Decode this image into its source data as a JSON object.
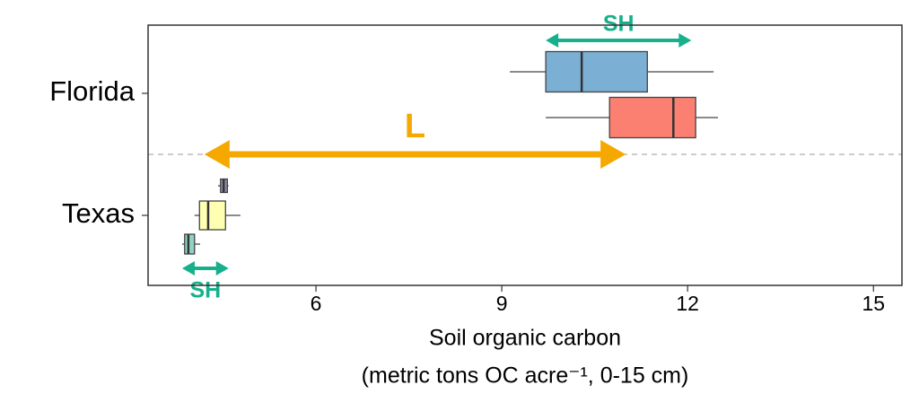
{
  "chart_data": {
    "type": "boxplot",
    "orientation": "horizontal",
    "categories": [
      "Florida",
      "Texas"
    ],
    "x_label": [
      "Soil organic carbon",
      "(metric tons OC acre⁻¹, 0-15 cm)"
    ],
    "xlim": [
      3.29,
      15.46
    ],
    "xticks": [
      6,
      9,
      12,
      15
    ],
    "grid": false,
    "category_divider": true,
    "series": [
      {
        "category": 0,
        "color": "#7bafd4",
        "values": {
          "min": 9.13,
          "q1": 9.71,
          "median": 10.29,
          "q3": 11.35,
          "max": 12.42
        }
      },
      {
        "category": 0,
        "color": "#fb8072",
        "values": {
          "min": 9.71,
          "q1": 10.74,
          "median": 11.77,
          "q3": 12.13,
          "max": 12.49
        }
      },
      {
        "category": 1,
        "color": "#8f8cab",
        "values": {
          "min": 4.42,
          "q1": 4.46,
          "median": 4.51,
          "q3": 4.57,
          "max": 4.59
        }
      },
      {
        "category": 1,
        "color": "#ffffb3",
        "values": {
          "min": 4.04,
          "q1": 4.12,
          "median": 4.26,
          "q3": 4.54,
          "max": 4.78
        }
      },
      {
        "category": 1,
        "color": "#8dd3c7",
        "values": {
          "min": 3.84,
          "q1": 3.88,
          "median": 3.94,
          "q3": 4.04,
          "max": 4.13
        }
      }
    ],
    "annotations": [
      {
        "text": "SH",
        "color": "#17b08c",
        "x": [
          9.71,
          12.06
        ]
      },
      {
        "text": "L",
        "color": "#f5a800",
        "x": [
          4.2,
          11.0
        ]
      },
      {
        "text": "SH",
        "color": "#17b08c",
        "x": [
          3.84,
          4.59
        ]
      }
    ]
  }
}
